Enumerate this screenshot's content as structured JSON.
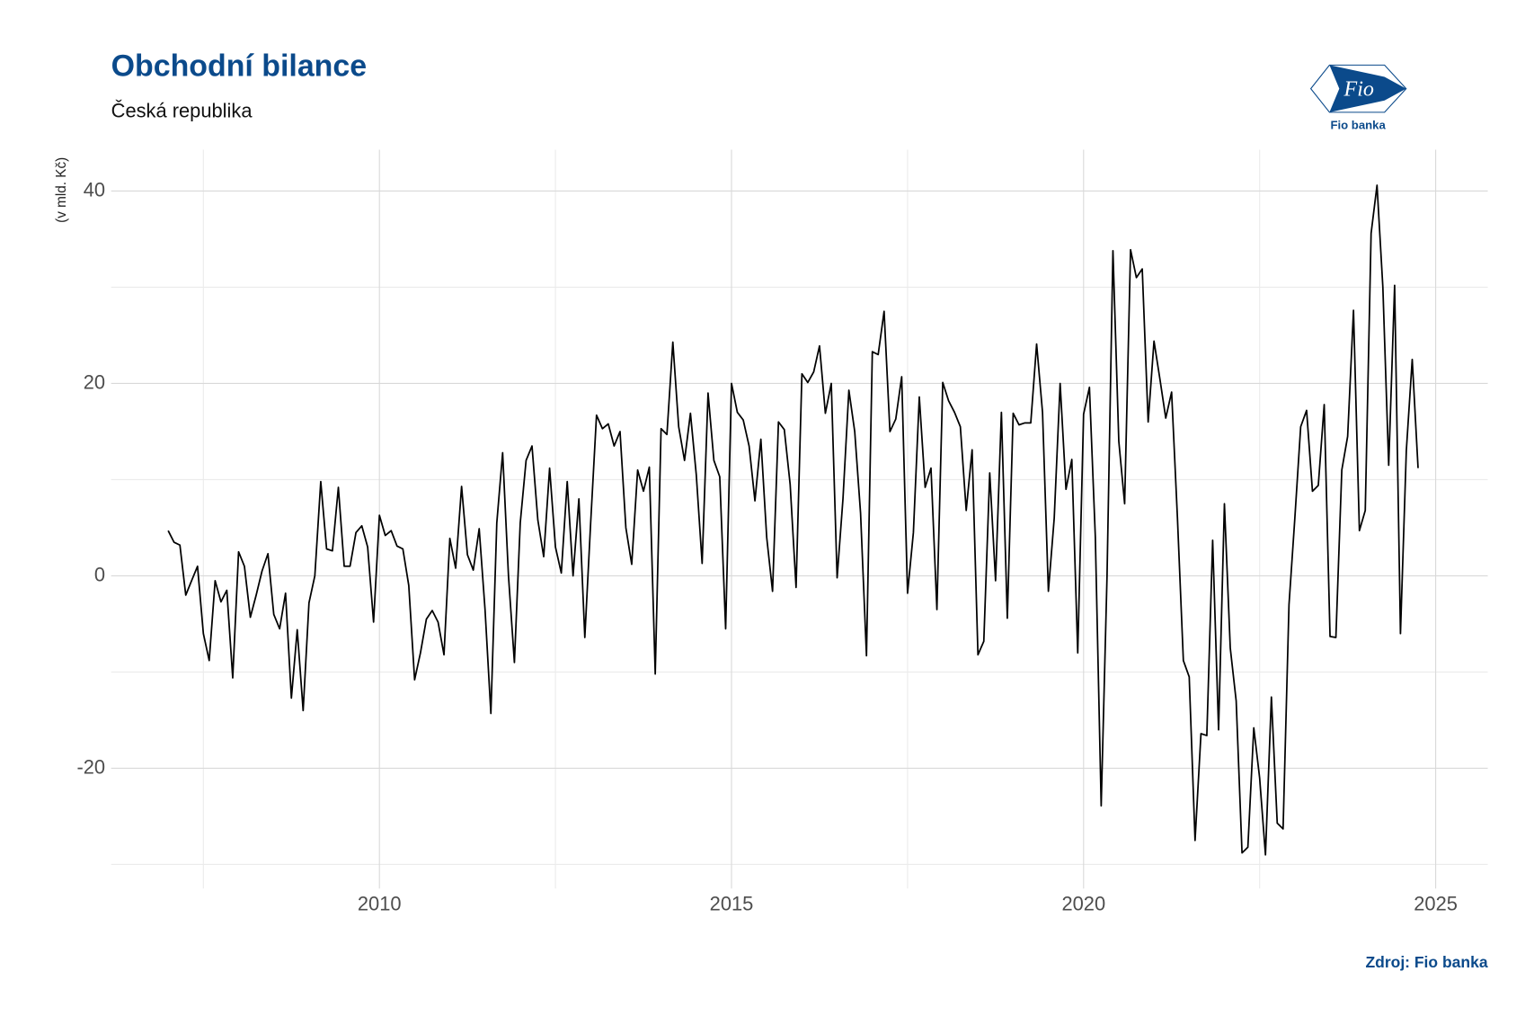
{
  "chart_data": {
    "type": "line",
    "title": "Obchodní bilance",
    "subtitle": "Česká republika",
    "y_label": "(v mld. Kč)",
    "source": "Zdroj: Fio banka",
    "logo": {
      "mark": "Fio",
      "name": "Fio banka"
    },
    "xlim": [
      2006.19,
      2025.74
    ],
    "ylim": [
      -32.5,
      44.3
    ],
    "xticks": [
      2010,
      2015,
      2020,
      2025
    ],
    "yticks": [
      -20,
      0,
      20,
      40
    ],
    "x_minor_grid": [
      2007.5,
      2012.5,
      2017.5,
      2022.5
    ],
    "y_minor_grid": [
      -30,
      -10,
      10,
      30
    ],
    "grid": true,
    "x": [
      2007,
      2007.083,
      2007.167,
      2007.25,
      2007.333,
      2007.417,
      2007.5,
      2007.583,
      2007.667,
      2007.75,
      2007.833,
      2007.917,
      2008,
      2008.083,
      2008.167,
      2008.25,
      2008.333,
      2008.417,
      2008.5,
      2008.583,
      2008.667,
      2008.75,
      2008.833,
      2008.917,
      2009,
      2009.083,
      2009.167,
      2009.25,
      2009.333,
      2009.417,
      2009.5,
      2009.583,
      2009.667,
      2009.75,
      2009.833,
      2009.917,
      2010,
      2010.083,
      2010.167,
      2010.25,
      2010.333,
      2010.417,
      2010.5,
      2010.583,
      2010.667,
      2010.75,
      2010.833,
      2010.917,
      2011,
      2011.083,
      2011.167,
      2011.25,
      2011.333,
      2011.417,
      2011.5,
      2011.583,
      2011.667,
      2011.75,
      2011.833,
      2011.917,
      2012,
      2012.083,
      2012.167,
      2012.25,
      2012.333,
      2012.417,
      2012.5,
      2012.583,
      2012.667,
      2012.75,
      2012.833,
      2012.917,
      2013,
      2013.083,
      2013.167,
      2013.25,
      2013.333,
      2013.417,
      2013.5,
      2013.583,
      2013.667,
      2013.75,
      2013.833,
      2013.917,
      2014,
      2014.083,
      2014.167,
      2014.25,
      2014.333,
      2014.417,
      2014.5,
      2014.583,
      2014.667,
      2014.75,
      2014.833,
      2014.917,
      2015,
      2015.083,
      2015.167,
      2015.25,
      2015.333,
      2015.417,
      2015.5,
      2015.583,
      2015.667,
      2015.75,
      2015.833,
      2015.917,
      2016,
      2016.083,
      2016.167,
      2016.25,
      2016.333,
      2016.417,
      2016.5,
      2016.583,
      2016.667,
      2016.75,
      2016.833,
      2016.917,
      2017,
      2017.083,
      2017.167,
      2017.25,
      2017.333,
      2017.417,
      2017.5,
      2017.583,
      2017.667,
      2017.75,
      2017.833,
      2017.917,
      2018,
      2018.083,
      2018.167,
      2018.25,
      2018.333,
      2018.417,
      2018.5,
      2018.583,
      2018.667,
      2018.75,
      2018.833,
      2018.917,
      2019,
      2019.083,
      2019.167,
      2019.25,
      2019.333,
      2019.417,
      2019.5,
      2019.583,
      2019.667,
      2019.75,
      2019.833,
      2019.917,
      2020,
      2020.083,
      2020.167,
      2020.25,
      2020.333,
      2020.417,
      2020.5,
      2020.583,
      2020.667,
      2020.75,
      2020.833,
      2020.917,
      2021,
      2021.083,
      2021.167,
      2021.25,
      2021.333,
      2021.417,
      2021.5,
      2021.583,
      2021.667,
      2021.75,
      2021.833,
      2021.917,
      2022,
      2022.083,
      2022.167,
      2022.25,
      2022.333,
      2022.417,
      2022.5,
      2022.583,
      2022.667,
      2022.75,
      2022.833,
      2022.917,
      2023,
      2023.083,
      2023.167,
      2023.25,
      2023.333,
      2023.417,
      2023.5,
      2023.583,
      2023.667,
      2023.75,
      2023.833,
      2023.917,
      2024,
      2024.083,
      2024.167,
      2024.25,
      2024.333,
      2024.417,
      2024.5,
      2024.583,
      2024.667,
      2024.75
    ],
    "series": [
      {
        "color": "#000000",
        "values": [
          4.7,
          3.5,
          3.2,
          -2,
          -0.5,
          1,
          -6,
          -8.8,
          -0.5,
          -2.7,
          -1.5,
          -10.6,
          2.5,
          1,
          -4.3,
          -2,
          0.5,
          2.3,
          -4,
          -5.5,
          -1.8,
          -12.7,
          -5.6,
          -14,
          -2.8,
          0,
          9.8,
          2.8,
          2.6,
          9.2,
          1,
          1,
          4.5,
          5.2,
          3,
          -4.8,
          6.3,
          4.2,
          4.7,
          3.1,
          2.8,
          -1,
          -10.8,
          -8,
          -4.5,
          -3.6,
          -4.8,
          -8.2,
          3.9,
          0.8,
          9.3,
          2.2,
          0.6,
          4.9,
          -3.5,
          -14.3,
          5.5,
          12.8,
          0,
          -9,
          5.5,
          12,
          13.5,
          5.8,
          2,
          11.2,
          3,
          0.3,
          9.8,
          0,
          8,
          -6.4,
          5.5,
          16.7,
          15.3,
          15.8,
          13.5,
          15,
          5,
          1.2,
          11,
          8.8,
          11.3,
          -10.2,
          15.3,
          14.7,
          24.3,
          15.5,
          12,
          16.9,
          10.5,
          1.3,
          19,
          12,
          10.3,
          -5.5,
          20,
          17,
          16.2,
          13.5,
          7.8,
          14.2,
          4,
          -1.6,
          16,
          15.2,
          9.5,
          -1.2,
          21,
          20.1,
          21.2,
          23.9,
          16.9,
          20,
          -0.2,
          8,
          19.3,
          15,
          6.5,
          -8.3,
          23.3,
          23,
          27.5,
          15,
          16.3,
          20.7,
          -1.8,
          4.5,
          18.6,
          9.2,
          11.2,
          -3.5,
          20.1,
          18.2,
          17,
          15.5,
          6.8,
          13.1,
          -8.2,
          -6.8,
          10.7,
          -0.5,
          17,
          -4.4,
          16.9,
          15.7,
          15.9,
          15.9,
          24.1,
          17,
          -1.6,
          6,
          20,
          9,
          12.1,
          -8,
          16.8,
          19.6,
          4,
          -23.9,
          0,
          33.8,
          14,
          7.5,
          33.9,
          31,
          31.9,
          16,
          24.4,
          20.5,
          16.4,
          19.1,
          6,
          -8.8,
          -10.5,
          -27.5,
          -16.4,
          -16.6,
          3.7,
          -16,
          7.5,
          -7.5,
          -13,
          -28.8,
          -28.2,
          -15.8,
          -21,
          -29,
          -12.6,
          -25.7,
          -26.3,
          -3,
          6,
          15.5,
          17.2,
          8.8,
          9.4,
          17.8,
          -6.3,
          -6.4,
          11,
          14.5,
          27.6,
          4.7,
          6.8,
          35.6,
          40.6,
          30,
          11.5,
          30.2,
          -6,
          13,
          22.5,
          11.2
        ]
      }
    ]
  }
}
